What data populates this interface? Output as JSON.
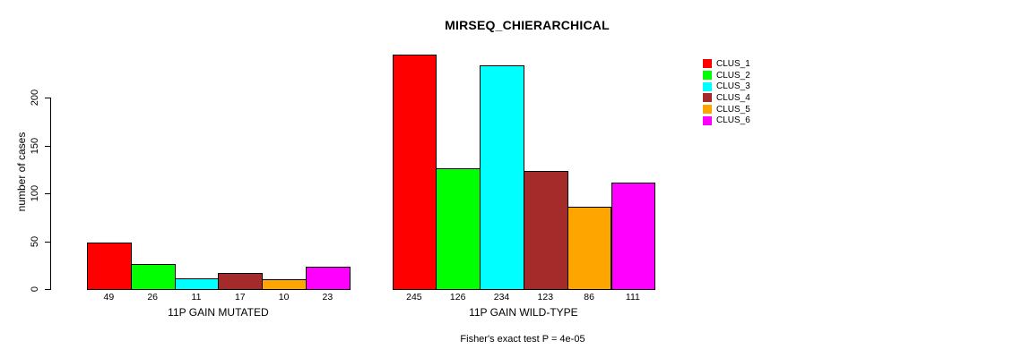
{
  "chart_data": {
    "type": "bar",
    "title": "MIRSEQ_CHIERARCHICAL",
    "ylabel": "number of cases",
    "xlabel": "",
    "annotation": "Fisher's exact test P = 4e-05",
    "yticks": [
      0,
      50,
      100,
      150,
      200
    ],
    "ylim": [
      0,
      250
    ],
    "grid": false,
    "legend_position": "right-outside",
    "categories": [
      "11P GAIN MUTATED",
      "11P GAIN WILD-TYPE"
    ],
    "series": [
      {
        "name": "CLUS_1",
        "color": "#FF0000",
        "values": [
          49,
          245
        ]
      },
      {
        "name": "CLUS_2",
        "color": "#00FF00",
        "values": [
          26,
          126
        ]
      },
      {
        "name": "CLUS_3",
        "color": "#00FFFF",
        "values": [
          11,
          234
        ]
      },
      {
        "name": "CLUS_4",
        "color": "#A52A2A",
        "values": [
          17,
          123
        ]
      },
      {
        "name": "CLUS_5",
        "color": "#FFA500",
        "values": [
          10,
          86
        ]
      },
      {
        "name": "CLUS_6",
        "color": "#FF00FF",
        "values": [
          23,
          111
        ]
      }
    ],
    "bar_border_color": "#000000",
    "background_color": "#FFFFFF",
    "text_color": "#000000"
  }
}
